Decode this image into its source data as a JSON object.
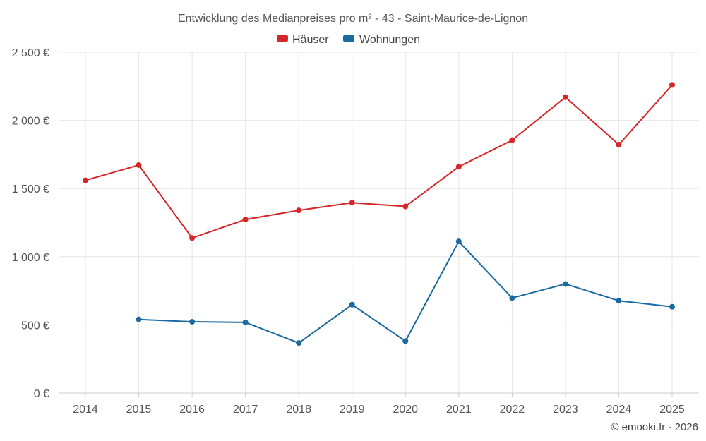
{
  "chart_data": {
    "type": "line",
    "title": "Entwicklung des Medianpreises pro m² - 43 - Saint-Maurice-de-Lignon",
    "categories": [
      "2014",
      "2015",
      "2016",
      "2017",
      "2018",
      "2019",
      "2020",
      "2021",
      "2022",
      "2023",
      "2024",
      "2025"
    ],
    "series": [
      {
        "name": "Häuser",
        "color": "#d62728",
        "values": [
          1560,
          1672,
          1137,
          1273,
          1340,
          1396,
          1369,
          1660,
          1855,
          2170,
          1822,
          2260
        ]
      },
      {
        "name": "Wohnungen",
        "color": "#1a6aa0",
        "values": [
          null,
          540,
          523,
          518,
          367,
          648,
          381,
          1112,
          697,
          800,
          677,
          633
        ]
      }
    ],
    "ylim": [
      0,
      2500
    ],
    "yticks": [
      0,
      500,
      1000,
      1500,
      2000,
      2500
    ],
    "ytick_labels": [
      "0 €",
      "500 €",
      "1 000 €",
      "1 500 €",
      "2 000 €",
      "2 500 €"
    ],
    "xlabel": "",
    "ylabel": "",
    "grid": true,
    "legend_position": "top-center"
  },
  "credit": "© emooki.fr - 2026"
}
